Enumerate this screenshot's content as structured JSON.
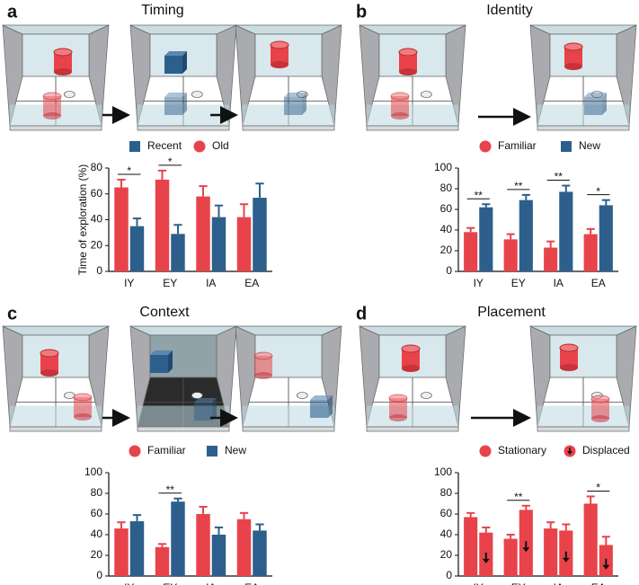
{
  "chart_data": [
    {
      "type": "bar",
      "panel": "a",
      "title": "Timing",
      "ylabel": "Time of exploration (%)",
      "categories": [
        "IY",
        "EY",
        "IA",
        "EA"
      ],
      "series": [
        {
          "name": "Recent",
          "color": "#2d5f8c",
          "marker": "square",
          "values": [
            35,
            29,
            42,
            57
          ],
          "errors": [
            6,
            7,
            9,
            11
          ]
        },
        {
          "name": "Old",
          "color": "#e8434a",
          "marker": "circle",
          "values": [
            65,
            71,
            58,
            42
          ],
          "errors": [
            6,
            7,
            8,
            10
          ]
        }
      ],
      "bar_order": [
        1,
        0
      ],
      "significance": [
        "*",
        "*",
        null,
        null
      ],
      "ylim": [
        0,
        80
      ],
      "yticks": [
        0,
        20,
        40,
        60,
        80
      ]
    },
    {
      "type": "bar",
      "panel": "b",
      "title": "Identity",
      "categories": [
        "IY",
        "EY",
        "IA",
        "EA"
      ],
      "series": [
        {
          "name": "Familiar",
          "color": "#e8434a",
          "marker": "circle",
          "values": [
            38,
            31,
            23,
            36
          ],
          "errors": [
            4,
            5,
            6,
            5
          ]
        },
        {
          "name": "New",
          "color": "#2d5f8c",
          "marker": "square",
          "values": [
            62,
            69,
            77,
            64
          ],
          "errors": [
            3,
            5,
            6,
            5
          ]
        }
      ],
      "bar_order": [
        0,
        1
      ],
      "significance": [
        "**",
        "**",
        "**",
        "*"
      ],
      "ylim": [
        0,
        100
      ],
      "yticks": [
        0,
        20,
        40,
        60,
        80,
        100
      ]
    },
    {
      "type": "bar",
      "panel": "c",
      "title": "Context",
      "categories": [
        "IY",
        "EY",
        "IA",
        "EA"
      ],
      "series": [
        {
          "name": "Familiar",
          "color": "#e8434a",
          "marker": "circle",
          "values": [
            46,
            28,
            60,
            55
          ],
          "errors": [
            6,
            3,
            7,
            6
          ]
        },
        {
          "name": "New",
          "color": "#2d5f8c",
          "marker": "square",
          "values": [
            53,
            72,
            40,
            44
          ],
          "errors": [
            6,
            3,
            7,
            6
          ]
        }
      ],
      "bar_order": [
        0,
        1
      ],
      "significance": [
        null,
        "**",
        null,
        null
      ],
      "ylim": [
        0,
        100
      ],
      "yticks": [
        0,
        20,
        40,
        60,
        80,
        100
      ]
    },
    {
      "type": "bar",
      "panel": "d",
      "title": "Placement",
      "categories": [
        "IY",
        "EY",
        "IA",
        "EA"
      ],
      "series": [
        {
          "name": "Stationary",
          "color": "#e8434a",
          "marker": "circle",
          "values": [
            57,
            36,
            46,
            70
          ],
          "errors": [
            4,
            4,
            6,
            7
          ]
        },
        {
          "name": "Displaced",
          "color": "#e8434a",
          "marker": "circle-arrow",
          "pattern": "arrow",
          "values": [
            42,
            64,
            44,
            30
          ],
          "errors": [
            5,
            4,
            6,
            8
          ]
        }
      ],
      "bar_order": [
        0,
        1
      ],
      "significance": [
        null,
        "**",
        null,
        "*"
      ],
      "ylim": [
        0,
        100
      ],
      "yticks": [
        0,
        20,
        40,
        60,
        80,
        100
      ]
    }
  ]
}
